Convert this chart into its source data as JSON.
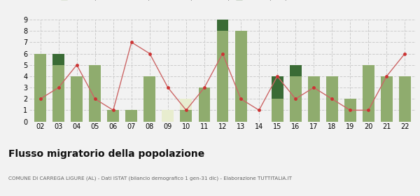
{
  "years": [
    "02",
    "03",
    "04",
    "05",
    "06",
    "07",
    "08",
    "09",
    "10",
    "11",
    "12",
    "13",
    "14",
    "15",
    "16",
    "17",
    "18",
    "19",
    "20",
    "21",
    "22"
  ],
  "iscritti_altri_comuni": [
    6,
    5,
    4,
    5,
    1,
    1,
    4,
    0,
    1,
    3,
    8,
    8,
    0,
    2,
    4,
    4,
    4,
    2,
    5,
    4,
    4
  ],
  "iscritti_estero": [
    0,
    0,
    0,
    0,
    0,
    0,
    0,
    1,
    1,
    0,
    0,
    0,
    0,
    0,
    0,
    0,
    0,
    0,
    0,
    0,
    0
  ],
  "iscritti_altri": [
    0,
    1,
    0,
    0,
    0,
    0,
    0,
    0,
    0,
    0,
    1,
    0,
    0,
    2,
    1,
    0,
    0,
    0,
    0,
    0,
    0
  ],
  "cancellati": [
    2,
    3,
    5,
    2,
    1,
    7,
    6,
    3,
    1,
    3,
    6,
    2,
    1,
    4,
    2,
    3,
    2,
    1,
    1,
    4,
    6
  ],
  "color_altri_comuni": "#8fac6e",
  "color_estero": "#e8edcf",
  "color_altri": "#3a6b35",
  "color_cancellati": "#cc3333",
  "color_cancellati_line": "#cc6666",
  "title": "Flusso migratorio della popolazione",
  "subtitle": "COMUNE DI CARREGA LIGURE (AL) - Dati ISTAT (bilancio demografico 1 gen-31 dic) - Elaborazione TUTTITALIA.IT",
  "ylim": [
    0,
    9
  ],
  "yticks": [
    0,
    1,
    2,
    3,
    4,
    5,
    6,
    7,
    8,
    9
  ],
  "background_color": "#f2f2f2"
}
